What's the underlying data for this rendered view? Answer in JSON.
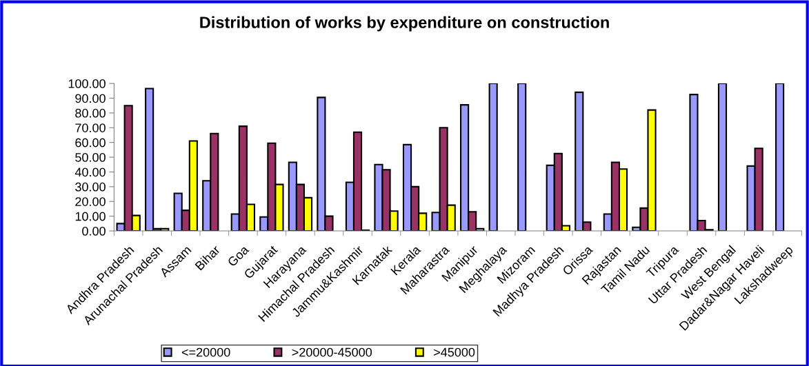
{
  "chart_data": {
    "type": "bar",
    "title": "Distribution of works by expenditure on construction",
    "categories": [
      "Andhra Pradesh",
      "Arunachal Pradesh",
      "Assam",
      "Bihar",
      "Goa",
      "Gujarat",
      "Harayana",
      "Himachal Pradesh",
      "Jammu&Kashmir",
      "Karnatak",
      "Kerala",
      "Maharastra",
      "Manipur",
      "Meghalaya",
      "Mizoram",
      "Madhya Pradesh",
      "Orissa",
      "Rajastan",
      "Tamil Nadu",
      "Tripura",
      "Uttar Pradesh",
      "West Bengal",
      "Dadar&Nagar Haveli",
      "Lakshadweep"
    ],
    "series": [
      {
        "name": "<=20000",
        "color": "#9999ff",
        "values": [
          5,
          96.5,
          25.5,
          34,
          11.5,
          9.5,
          46.5,
          90.5,
          33,
          45,
          58.5,
          12.5,
          85.5,
          100,
          100,
          44.5,
          94,
          11.5,
          2.5,
          null,
          92.5,
          100,
          44,
          100
        ]
      },
      {
        "name": ">20000-45000",
        "color": "#993366",
        "values": [
          85,
          1.5,
          14,
          66,
          71,
          59.5,
          31.5,
          10,
          67,
          41.5,
          30,
          70,
          13,
          null,
          null,
          52.5,
          6,
          46.5,
          15.5,
          null,
          7,
          null,
          56,
          null
        ]
      },
      {
        "name": ">45000",
        "color": "#ffff00",
        "values": [
          10.5,
          1.5,
          61,
          null,
          18,
          31.5,
          22.5,
          null,
          0.5,
          13.5,
          12,
          17.5,
          1.5,
          null,
          null,
          3.5,
          null,
          42,
          82,
          null,
          0.8,
          null,
          null,
          null
        ]
      }
    ],
    "ylim": [
      0,
      100
    ],
    "yticks": [
      {
        "value": 0,
        "label": "0.00"
      },
      {
        "value": 10,
        "label": "10.00"
      },
      {
        "value": 20,
        "label": "20.00"
      },
      {
        "value": 30,
        "label": "30.00"
      },
      {
        "value": 40,
        "label": "40.00"
      },
      {
        "value": 50,
        "label": "50.00"
      },
      {
        "value": 60,
        "label": "60.00"
      },
      {
        "value": 70,
        "label": "70.00"
      },
      {
        "value": 80,
        "label": "80.00"
      },
      {
        "value": 90,
        "label": "90.00"
      },
      {
        "value": 100,
        "label": "100.00"
      }
    ],
    "grid": false,
    "legend": "bottom"
  }
}
